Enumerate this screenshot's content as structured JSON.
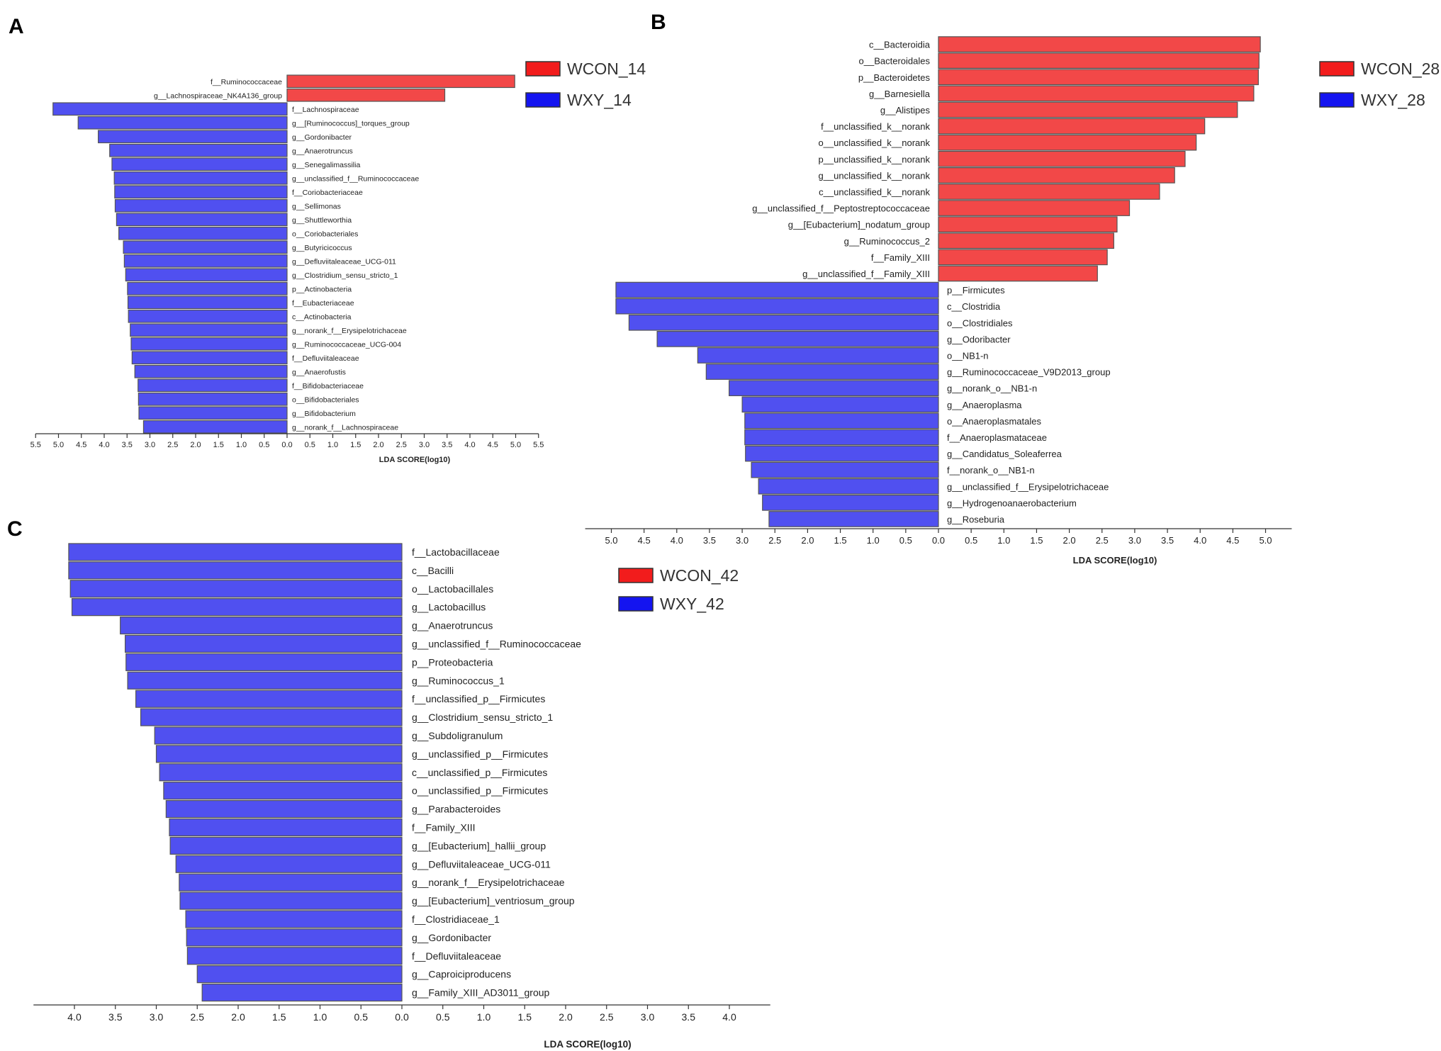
{
  "colors": {
    "up": "#f24848",
    "down": "#5050f0",
    "legend_up": "#f21c1c",
    "legend_down": "#1414f0",
    "edge": "#555555"
  },
  "chart_data": [
    {
      "type": "bar",
      "panel_label": "A",
      "xlabel": "LDA SCORE(log10)",
      "xlim": [
        -5.5,
        5.5
      ],
      "ticks": [
        "5.5",
        "5.0",
        "4.5",
        "4.0",
        "3.5",
        "3.0",
        "2.5",
        "2.0",
        "1.5",
        "1.0",
        "0.5",
        "0.0",
        "0.5",
        "1.0",
        "1.5",
        "2.0",
        "2.5",
        "3.0",
        "3.5",
        "4.0",
        "4.5",
        "5.0",
        "5.5"
      ],
      "legend": [
        {
          "label": "WCON_14",
          "color_key": "legend_up"
        },
        {
          "label": "WXY_14",
          "color_key": "legend_down"
        }
      ],
      "categories": [
        "f__Ruminococcaceae",
        "g__Lachnospiraceae_NK4A136_group",
        "f__Lachnospiraceae",
        "g__[Ruminococcus]_torques_group",
        "g__Gordonibacter",
        "g__Anaerotruncus",
        "g__Senegalimassilia",
        "g__unclassified_f__Ruminococcaceae",
        "f__Coriobacteriaceae",
        "g__Sellimonas",
        "g__Shuttleworthia",
        "o__Coriobacteriales",
        "g__Butyricicoccus",
        "g__Defluviitaleaceae_UCG-011",
        "g__Clostridium_sensu_stricto_1",
        "p__Actinobacteria",
        "f__Eubacteriaceae",
        "c__Actinobacteria",
        "g__norank_f__Erysipelotrichaceae",
        "g__Ruminococcaceae_UCG-004",
        "f__Defluviitaleaceae",
        "g__Anaerofustis",
        "f__Bifidobacteriaceae",
        "o__Bifidobacteriales",
        "g__Bifidobacterium",
        "g__norank_f__Lachnospiraceae"
      ],
      "values": [
        4.98,
        3.45,
        -5.12,
        -4.57,
        -4.13,
        -3.88,
        -3.83,
        -3.78,
        -3.77,
        -3.76,
        -3.73,
        -3.68,
        -3.58,
        -3.56,
        -3.53,
        -3.49,
        -3.48,
        -3.47,
        -3.43,
        -3.41,
        -3.39,
        -3.33,
        -3.26,
        -3.25,
        -3.24,
        -3.14
      ]
    },
    {
      "type": "bar",
      "panel_label": "B",
      "xlabel": "LDA SCORE(log10)",
      "xlim": [
        -5.4,
        5.4
      ],
      "ticks": [
        "5.0",
        "4.5",
        "4.0",
        "3.5",
        "3.0",
        "2.5",
        "2.0",
        "1.5",
        "1.0",
        "0.5",
        "0.0",
        "0.5",
        "1.0",
        "1.5",
        "2.0",
        "2.5",
        "3.0",
        "3.5",
        "4.0",
        "4.5",
        "5.0"
      ],
      "legend": [
        {
          "label": "WCON_28",
          "color_key": "legend_up"
        },
        {
          "label": "WXY_28",
          "color_key": "legend_down"
        }
      ],
      "categories": [
        "c__Bacteroidia",
        "o__Bacteroidales",
        "p__Bacteroidetes",
        "g__Barnesiella",
        "g__Alistipes",
        "f__unclassified_k__norank",
        "o__unclassified_k__norank",
        "p__unclassified_k__norank",
        "g__unclassified_k__norank",
        "c__unclassified_k__norank",
        "g__unclassified_f__Peptostreptococcaceae",
        "g__[Eubacterium]_nodatum_group",
        "g__Ruminococcus_2",
        "f__Family_XIII",
        "g__unclassified_f__Family_XIII",
        "p__Firmicutes",
        "c__Clostridia",
        "o__Clostridiales",
        "g__Odoribacter",
        "o__NB1-n",
        "g__Ruminococcaceae_V9D2013_group",
        "g__norank_o__NB1-n",
        "g__Anaeroplasma",
        "o__Anaeroplasmatales",
        "f__Anaeroplasmataceae",
        "g__Candidatus_Soleaferrea",
        "f__norank_o__NB1-n",
        "g__unclassified_f__Erysipelotrichaceae",
        "g__Hydrogenoanaerobacterium",
        "g__Roseburia"
      ],
      "values": [
        4.92,
        4.9,
        4.89,
        4.82,
        4.57,
        4.07,
        3.94,
        3.77,
        3.61,
        3.38,
        2.92,
        2.73,
        2.68,
        2.58,
        2.43,
        -4.93,
        -4.93,
        -4.73,
        -4.3,
        -3.68,
        -3.55,
        -3.2,
        -3.0,
        -2.96,
        -2.96,
        -2.95,
        -2.86,
        -2.75,
        -2.69,
        -2.59
      ]
    },
    {
      "type": "bar",
      "panel_label": "C",
      "xlabel": "LDA SCORE(log10)",
      "xlim": [
        -4.5,
        4.5
      ],
      "ticks": [
        "4.0",
        "3.5",
        "3.0",
        "2.5",
        "2.0",
        "1.5",
        "1.0",
        "0.5",
        "0.0",
        "0.5",
        "1.0",
        "1.5",
        "2.0",
        "2.5",
        "3.0",
        "3.5",
        "4.0"
      ],
      "legend": [
        {
          "label": "WCON_42",
          "color_key": "legend_up"
        },
        {
          "label": "WXY_42",
          "color_key": "legend_down"
        }
      ],
      "categories": [
        "f__Lactobacillaceae",
        "c__Bacilli",
        "o__Lactobacillales",
        "g__Lactobacillus",
        "g__Anaerotruncus",
        "g__unclassified_f__Ruminococcaceae",
        "p__Proteobacteria",
        "g__Ruminococcus_1",
        "f__unclassified_p__Firmicutes",
        "g__Clostridium_sensu_stricto_1",
        "g__Subdoligranulum",
        "g__unclassified_p__Firmicutes",
        "c__unclassified_p__Firmicutes",
        "o__unclassified_p__Firmicutes",
        "g__Parabacteroides",
        "f__Family_XIII",
        "g__[Eubacterium]_hallii_group",
        "g__Defluviitaleaceae_UCG-011",
        "g__norank_f__Erysipelotrichaceae",
        "g__[Eubacterium]_ventriosum_group",
        "f__Clostridiaceae_1",
        "g__Gordonibacter",
        "f__Defluviitaleaceae",
        "g__Caproiciproducens",
        "g__Family_XIII_AD3011_group"
      ],
      "values": [
        -4.07,
        -4.07,
        -4.05,
        -4.03,
        -3.44,
        -3.38,
        -3.37,
        -3.35,
        -3.25,
        -3.19,
        -3.02,
        -3.0,
        -2.96,
        -2.91,
        -2.88,
        -2.84,
        -2.83,
        -2.76,
        -2.72,
        -2.71,
        -2.64,
        -2.63,
        -2.62,
        -2.5,
        -2.44
      ]
    }
  ]
}
